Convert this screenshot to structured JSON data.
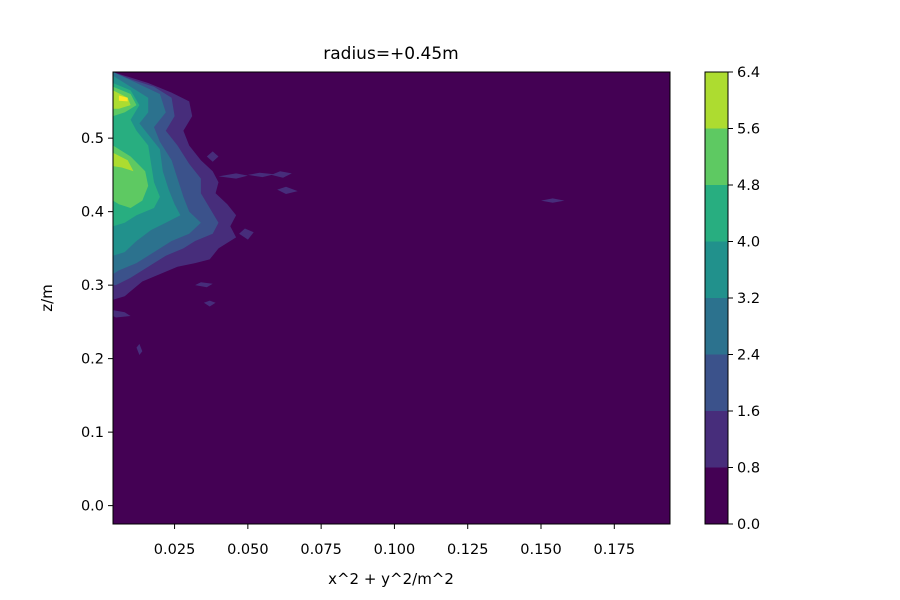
{
  "chart_data": {
    "type": "heatmap",
    "subtype": "filled-contour",
    "title": "radius=+0.45m",
    "xlabel": "x^2 + y^2/m^2",
    "ylabel": "z/m",
    "xlim": [
      0.004,
      0.194
    ],
    "ylim": [
      -0.025,
      0.59
    ],
    "x_ticks": [
      0.025,
      0.05,
      0.075,
      0.1,
      0.125,
      0.15,
      0.175
    ],
    "x_tick_labels": [
      "0.025",
      "0.050",
      "0.075",
      "0.100",
      "0.125",
      "0.150",
      "0.175"
    ],
    "y_ticks": [
      0.0,
      0.1,
      0.2,
      0.3,
      0.4,
      0.5
    ],
    "y_tick_labels": [
      "0.0",
      "0.1",
      "0.2",
      "0.3",
      "0.4",
      "0.5"
    ],
    "colormap": "viridis",
    "colorbar": {
      "levels": [
        0.0,
        0.8,
        1.6,
        2.4,
        3.2,
        4.0,
        4.8,
        5.6,
        6.4
      ],
      "tick_labels": [
        "0.0",
        "0.8",
        "1.6",
        "2.4",
        "3.2",
        "4.0",
        "4.8",
        "5.6",
        "6.4"
      ],
      "colors": [
        "#440154",
        "#472d7b",
        "#3b528b",
        "#2c728e",
        "#21918c",
        "#28ae80",
        "#5ec962",
        "#addc30",
        "#fde725"
      ]
    },
    "grid": false,
    "regions": [
      {
        "level": 1,
        "points": [
          [
            0.004,
            0.59
          ],
          [
            0.008,
            0.585
          ],
          [
            0.016,
            0.575
          ],
          [
            0.024,
            0.562
          ],
          [
            0.03,
            0.55
          ],
          [
            0.031,
            0.53
          ],
          [
            0.028,
            0.51
          ],
          [
            0.03,
            0.49
          ],
          [
            0.034,
            0.47
          ],
          [
            0.038,
            0.455
          ],
          [
            0.04,
            0.44
          ],
          [
            0.039,
            0.425
          ],
          [
            0.043,
            0.41
          ],
          [
            0.046,
            0.395
          ],
          [
            0.044,
            0.38
          ],
          [
            0.046,
            0.365
          ],
          [
            0.04,
            0.35
          ],
          [
            0.037,
            0.335
          ],
          [
            0.032,
            0.33
          ],
          [
            0.026,
            0.325
          ],
          [
            0.02,
            0.315
          ],
          [
            0.014,
            0.305
          ],
          [
            0.008,
            0.285
          ],
          [
            0.004,
            0.28
          ]
        ]
      },
      {
        "level": 2,
        "points": [
          [
            0.004,
            0.59
          ],
          [
            0.01,
            0.58
          ],
          [
            0.018,
            0.57
          ],
          [
            0.024,
            0.555
          ],
          [
            0.025,
            0.53
          ],
          [
            0.022,
            0.51
          ],
          [
            0.026,
            0.49
          ],
          [
            0.03,
            0.465
          ],
          [
            0.034,
            0.445
          ],
          [
            0.034,
            0.425
          ],
          [
            0.037,
            0.405
          ],
          [
            0.04,
            0.385
          ],
          [
            0.038,
            0.37
          ],
          [
            0.032,
            0.36
          ],
          [
            0.028,
            0.35
          ],
          [
            0.022,
            0.34
          ],
          [
            0.016,
            0.325
          ],
          [
            0.01,
            0.31
          ],
          [
            0.005,
            0.3
          ],
          [
            0.004,
            0.3
          ]
        ]
      },
      {
        "level": 3,
        "points": [
          [
            0.004,
            0.59
          ],
          [
            0.012,
            0.575
          ],
          [
            0.02,
            0.56
          ],
          [
            0.022,
            0.535
          ],
          [
            0.018,
            0.515
          ],
          [
            0.02,
            0.495
          ],
          [
            0.024,
            0.47
          ],
          [
            0.026,
            0.445
          ],
          [
            0.028,
            0.42
          ],
          [
            0.03,
            0.4
          ],
          [
            0.034,
            0.385
          ],
          [
            0.03,
            0.37
          ],
          [
            0.024,
            0.36
          ],
          [
            0.018,
            0.345
          ],
          [
            0.012,
            0.33
          ],
          [
            0.006,
            0.32
          ],
          [
            0.004,
            0.315
          ]
        ]
      },
      {
        "level": 4,
        "points": [
          [
            0.004,
            0.585
          ],
          [
            0.01,
            0.57
          ],
          [
            0.016,
            0.555
          ],
          [
            0.016,
            0.535
          ],
          [
            0.013,
            0.52
          ],
          [
            0.016,
            0.505
          ],
          [
            0.02,
            0.485
          ],
          [
            0.021,
            0.455
          ],
          [
            0.023,
            0.43
          ],
          [
            0.025,
            0.41
          ],
          [
            0.027,
            0.395
          ],
          [
            0.022,
            0.385
          ],
          [
            0.017,
            0.375
          ],
          [
            0.012,
            0.36
          ],
          [
            0.008,
            0.345
          ],
          [
            0.004,
            0.34
          ]
        ]
      },
      {
        "level": 5,
        "points": [
          [
            0.004,
            0.575
          ],
          [
            0.01,
            0.565
          ],
          [
            0.013,
            0.545
          ],
          [
            0.01,
            0.525
          ],
          [
            0.012,
            0.51
          ],
          [
            0.016,
            0.49
          ],
          [
            0.017,
            0.465
          ],
          [
            0.018,
            0.44
          ],
          [
            0.02,
            0.42
          ],
          [
            0.018,
            0.405
          ],
          [
            0.012,
            0.395
          ],
          [
            0.008,
            0.385
          ],
          [
            0.004,
            0.38
          ]
        ]
      },
      {
        "level": 6,
        "points": [
          [
            0.004,
            0.57
          ],
          [
            0.01,
            0.56
          ],
          [
            0.012,
            0.545
          ],
          [
            0.008,
            0.535
          ],
          [
            0.004,
            0.53
          ]
        ]
      },
      {
        "level": 6,
        "points": [
          [
            0.004,
            0.49
          ],
          [
            0.01,
            0.475
          ],
          [
            0.015,
            0.455
          ],
          [
            0.016,
            0.435
          ],
          [
            0.014,
            0.415
          ],
          [
            0.01,
            0.405
          ],
          [
            0.006,
            0.41
          ],
          [
            0.004,
            0.415
          ]
        ]
      },
      {
        "level": 7,
        "points": [
          [
            0.004,
            0.565
          ],
          [
            0.009,
            0.555
          ],
          [
            0.01,
            0.545
          ],
          [
            0.006,
            0.54
          ],
          [
            0.004,
            0.54
          ]
        ]
      },
      {
        "level": 7,
        "points": [
          [
            0.004,
            0.48
          ],
          [
            0.009,
            0.47
          ],
          [
            0.011,
            0.455
          ],
          [
            0.007,
            0.46
          ],
          [
            0.004,
            0.462
          ]
        ]
      },
      {
        "level": 8,
        "points": [
          [
            0.006,
            0.558
          ],
          [
            0.009,
            0.555
          ],
          [
            0.009,
            0.55
          ],
          [
            0.006,
            0.551
          ]
        ]
      },
      {
        "level": 1,
        "points": [
          [
            0.04,
            0.448
          ],
          [
            0.046,
            0.445
          ],
          [
            0.05,
            0.449
          ],
          [
            0.046,
            0.452
          ]
        ]
      },
      {
        "level": 1,
        "points": [
          [
            0.05,
            0.45
          ],
          [
            0.055,
            0.447
          ],
          [
            0.059,
            0.451
          ],
          [
            0.054,
            0.453
          ]
        ]
      },
      {
        "level": 1,
        "points": [
          [
            0.058,
            0.45
          ],
          [
            0.062,
            0.446
          ],
          [
            0.065,
            0.452
          ],
          [
            0.061,
            0.455
          ]
        ]
      },
      {
        "level": 1,
        "points": [
          [
            0.06,
            0.43
          ],
          [
            0.063,
            0.424
          ],
          [
            0.067,
            0.428
          ],
          [
            0.063,
            0.434
          ]
        ]
      },
      {
        "level": 1,
        "points": [
          [
            0.036,
            0.475
          ],
          [
            0.038,
            0.468
          ],
          [
            0.04,
            0.475
          ],
          [
            0.038,
            0.482
          ]
        ]
      },
      {
        "level": 1,
        "points": [
          [
            0.047,
            0.37
          ],
          [
            0.05,
            0.362
          ],
          [
            0.052,
            0.372
          ],
          [
            0.049,
            0.377
          ]
        ]
      },
      {
        "level": 1,
        "points": [
          [
            0.032,
            0.3
          ],
          [
            0.036,
            0.297
          ],
          [
            0.038,
            0.302
          ],
          [
            0.034,
            0.304
          ]
        ]
      },
      {
        "level": 1,
        "points": [
          [
            0.035,
            0.276
          ],
          [
            0.037,
            0.271
          ],
          [
            0.039,
            0.276
          ],
          [
            0.037,
            0.279
          ]
        ]
      },
      {
        "level": 1,
        "points": [
          [
            0.004,
            0.266
          ],
          [
            0.008,
            0.263
          ],
          [
            0.01,
            0.258
          ],
          [
            0.005,
            0.256
          ],
          [
            0.004,
            0.258
          ]
        ]
      },
      {
        "level": 1,
        "points": [
          [
            0.012,
            0.215
          ],
          [
            0.013,
            0.205
          ],
          [
            0.014,
            0.21
          ],
          [
            0.013,
            0.22
          ]
        ]
      },
      {
        "level": 1,
        "points": [
          [
            0.15,
            0.415
          ],
          [
            0.154,
            0.412
          ],
          [
            0.158,
            0.415
          ],
          [
            0.154,
            0.418
          ]
        ]
      }
    ]
  }
}
